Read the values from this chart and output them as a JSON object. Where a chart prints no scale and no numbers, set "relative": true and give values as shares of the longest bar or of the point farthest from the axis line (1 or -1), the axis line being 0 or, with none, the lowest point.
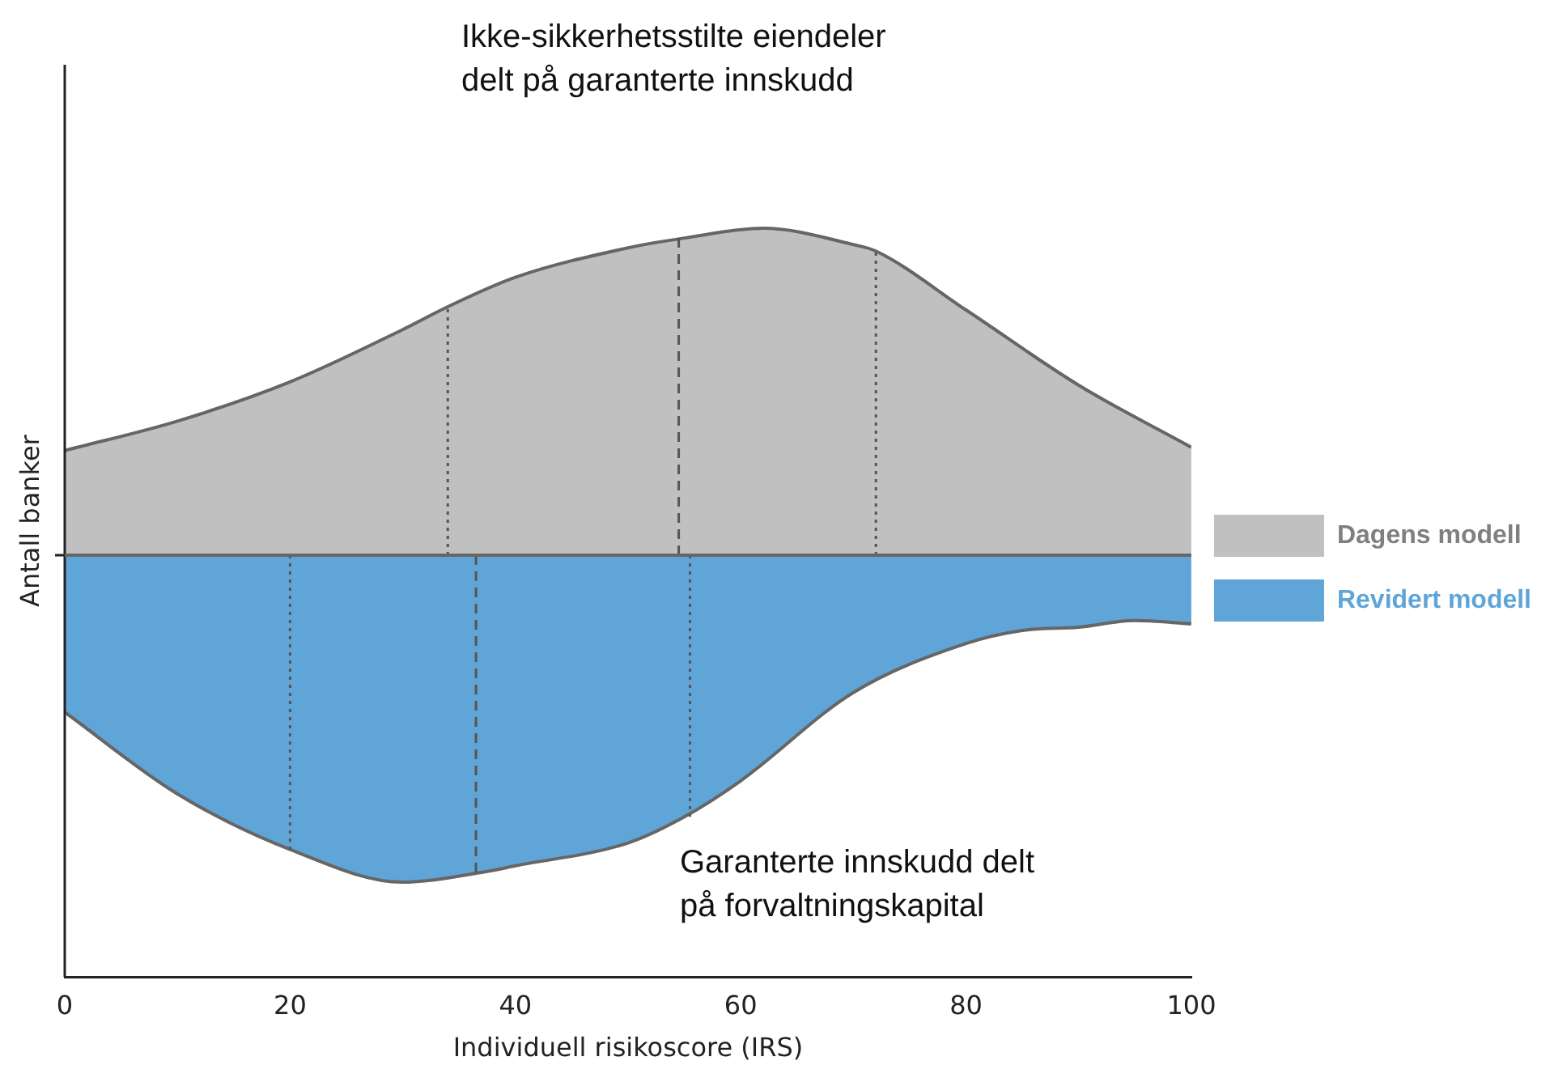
{
  "chart_data": {
    "type": "area",
    "relative": true,
    "xlabel": "Individuell risikoscore (IRS)",
    "ylabel": "Antall banker",
    "xlim": [
      0,
      100
    ],
    "xticks": [
      0,
      20,
      40,
      60,
      80,
      100
    ],
    "legend": "right",
    "grid": false,
    "annotations": [
      "Ikke-sikkerhetsstilte eiendeler\ndelt på garanterte innskudd",
      "Garanterte innskudd delt\npå forvaltningskapital"
    ],
    "series": [
      {
        "name": "Dagens modell",
        "color": "#c0c0c0",
        "x": [
          0,
          10,
          20,
          30,
          34,
          40,
          50,
          55,
          62,
          70,
          72,
          80,
          90,
          100
        ],
        "values": [
          0.32,
          0.41,
          0.53,
          0.69,
          0.76,
          0.85,
          0.94,
          0.97,
          1.0,
          0.95,
          0.93,
          0.75,
          0.52,
          0.33
        ]
      },
      {
        "name": "Revidert modell",
        "color": "#5fa5d8",
        "x": [
          0,
          10,
          20,
          30,
          37,
          40,
          50,
          55,
          60,
          70,
          80,
          85,
          90,
          95,
          100
        ],
        "values": [
          -0.48,
          -0.73,
          -0.9,
          -1.0,
          -0.97,
          -0.95,
          -0.88,
          -0.8,
          -0.69,
          -0.42,
          -0.27,
          -0.23,
          -0.22,
          -0.2,
          -0.21
        ]
      },
      {
        "type": "line",
        "color": "#555555",
        "line_style": "dotted",
        "x": [
          34,
          34
        ],
        "values": [
          0,
          0.76
        ]
      },
      {
        "type": "line",
        "color": "#555555",
        "line_style": "dashed",
        "x": [
          54.5,
          54.5
        ],
        "values": [
          0,
          0.97
        ]
      },
      {
        "type": "line",
        "color": "#555555",
        "line_style": "dotted",
        "x": [
          72,
          72
        ],
        "values": [
          0,
          0.93
        ]
      },
      {
        "type": "line",
        "color": "#555555",
        "line_style": "dotted",
        "x": [
          20,
          20
        ],
        "values": [
          0,
          -0.9
        ]
      },
      {
        "type": "line",
        "color": "#555555",
        "line_style": "dashed",
        "x": [
          36.5,
          36.5
        ],
        "values": [
          0,
          -0.97
        ]
      },
      {
        "type": "line",
        "color": "#555555",
        "line_style": "dotted",
        "x": [
          55.5,
          55.5
        ],
        "values": [
          0,
          -0.8
        ]
      }
    ]
  }
}
